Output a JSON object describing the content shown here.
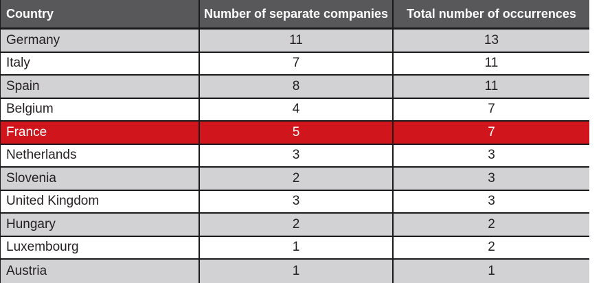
{
  "colors": {
    "header_bg": "#58585a",
    "header_text": "#ffffff",
    "row_bg": "#ffffff",
    "row_alt_bg": "#d2d2d4",
    "highlight_bg": "#d0161c",
    "highlight_text": "#ffffff",
    "border": "#1a1a1a",
    "text": "#231f20"
  },
  "table": {
    "columns": [
      "Country",
      "Number of separate companies",
      "Total number of occurrences"
    ],
    "highlighted_row": "France",
    "rows": [
      {
        "country": "Germany",
        "companies": "11",
        "occurrences": "13"
      },
      {
        "country": "Italy",
        "companies": "7",
        "occurrences": "11"
      },
      {
        "country": "Spain",
        "companies": "8",
        "occurrences": "11"
      },
      {
        "country": "Belgium",
        "companies": "4",
        "occurrences": "7"
      },
      {
        "country": "France",
        "companies": "5",
        "occurrences": "7"
      },
      {
        "country": "Netherlands",
        "companies": "3",
        "occurrences": "3"
      },
      {
        "country": "Slovenia",
        "companies": "2",
        "occurrences": "3"
      },
      {
        "country": "United Kingdom",
        "companies": "3",
        "occurrences": "3"
      },
      {
        "country": "Hungary",
        "companies": "2",
        "occurrences": "2"
      },
      {
        "country": "Luxembourg",
        "companies": "1",
        "occurrences": "2"
      },
      {
        "country": "Austria",
        "companies": "1",
        "occurrences": "1"
      }
    ]
  },
  "chart_data": {
    "type": "table",
    "columns": [
      "Country",
      "Number of separate companies",
      "Total number of occurrences"
    ],
    "rows": [
      [
        "Germany",
        11,
        13
      ],
      [
        "Italy",
        7,
        11
      ],
      [
        "Spain",
        8,
        11
      ],
      [
        "Belgium",
        4,
        7
      ],
      [
        "France",
        5,
        7
      ],
      [
        "Netherlands",
        3,
        3
      ],
      [
        "Slovenia",
        2,
        3
      ],
      [
        "United Kingdom",
        3,
        3
      ],
      [
        "Hungary",
        2,
        2
      ],
      [
        "Luxembourg",
        1,
        2
      ],
      [
        "Austria",
        1,
        1
      ]
    ],
    "highlighted_row": "France",
    "layout": {
      "zebra_striping": true,
      "header_position": "top"
    }
  }
}
